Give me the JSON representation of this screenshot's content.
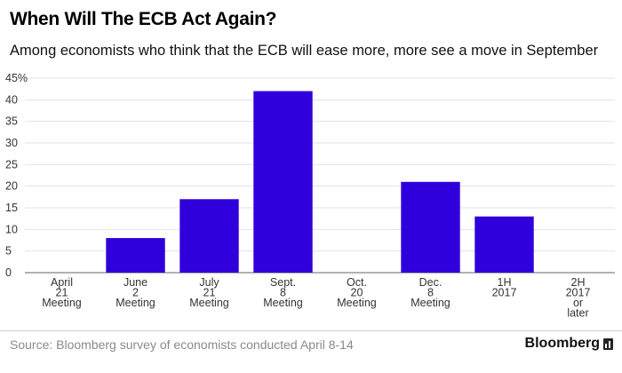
{
  "header": {
    "title": "When Will The ECB Act Again?",
    "subtitle": "Among economists who think that the ECB will ease more, more see a move in September"
  },
  "footer": {
    "source": "Source: Bloomberg survey of economists conducted April 8-14",
    "brand": "Bloomberg"
  },
  "colors": {
    "bar": "#2f00db",
    "grid": "#e2e2e2",
    "axis": "#666666",
    "text": "#333333"
  },
  "chart_data": {
    "type": "bar",
    "categories": [
      [
        "April",
        "21",
        "Meeting"
      ],
      [
        "June",
        "2",
        "Meeting"
      ],
      [
        "July",
        "21",
        "Meeting"
      ],
      [
        "Sept.",
        "8",
        "Meeting"
      ],
      [
        "Oct.",
        "20",
        "Meeting"
      ],
      [
        "Dec.",
        "8",
        "Meeting"
      ],
      [
        "1H",
        "2017"
      ],
      [
        "2H",
        "2017",
        "or",
        "later"
      ]
    ],
    "values": [
      0,
      8,
      17,
      42,
      0,
      21,
      13,
      0
    ],
    "ylim": [
      0,
      45
    ],
    "yticks": [
      0,
      5,
      10,
      15,
      20,
      25,
      30,
      35,
      40,
      45
    ],
    "ytick_labels": [
      "0",
      "5",
      "10",
      "15",
      "20",
      "25",
      "30",
      "35",
      "40",
      "45%"
    ],
    "grid": true
  }
}
